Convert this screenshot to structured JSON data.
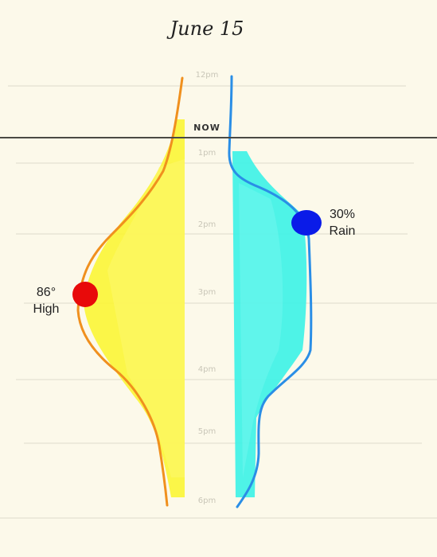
{
  "title": "June 15",
  "now_label": "NOW",
  "hours": [
    {
      "label": "12pm",
      "hour": 12
    },
    {
      "label": "1pm",
      "hour": 13
    },
    {
      "label": "2pm",
      "hour": 14
    },
    {
      "label": "3pm",
      "hour": 15
    },
    {
      "label": "4pm",
      "hour": 16
    },
    {
      "label": "5pm",
      "hour": 17
    },
    {
      "label": "6pm",
      "hour": 18
    }
  ],
  "now_hour": 12.75,
  "temperature": {
    "high_value": "86°",
    "high_label": "High",
    "peak_hour": 15,
    "color_line": "#f0901e",
    "color_fill": "#fbf53a",
    "color_marker": "#e80a0a"
  },
  "rain": {
    "value": "30%",
    "label": "Rain",
    "peak_hour": 14,
    "color_line": "#2a8ee6",
    "color_fill": "#3ff2e6",
    "color_marker": "#0a1be8"
  }
}
